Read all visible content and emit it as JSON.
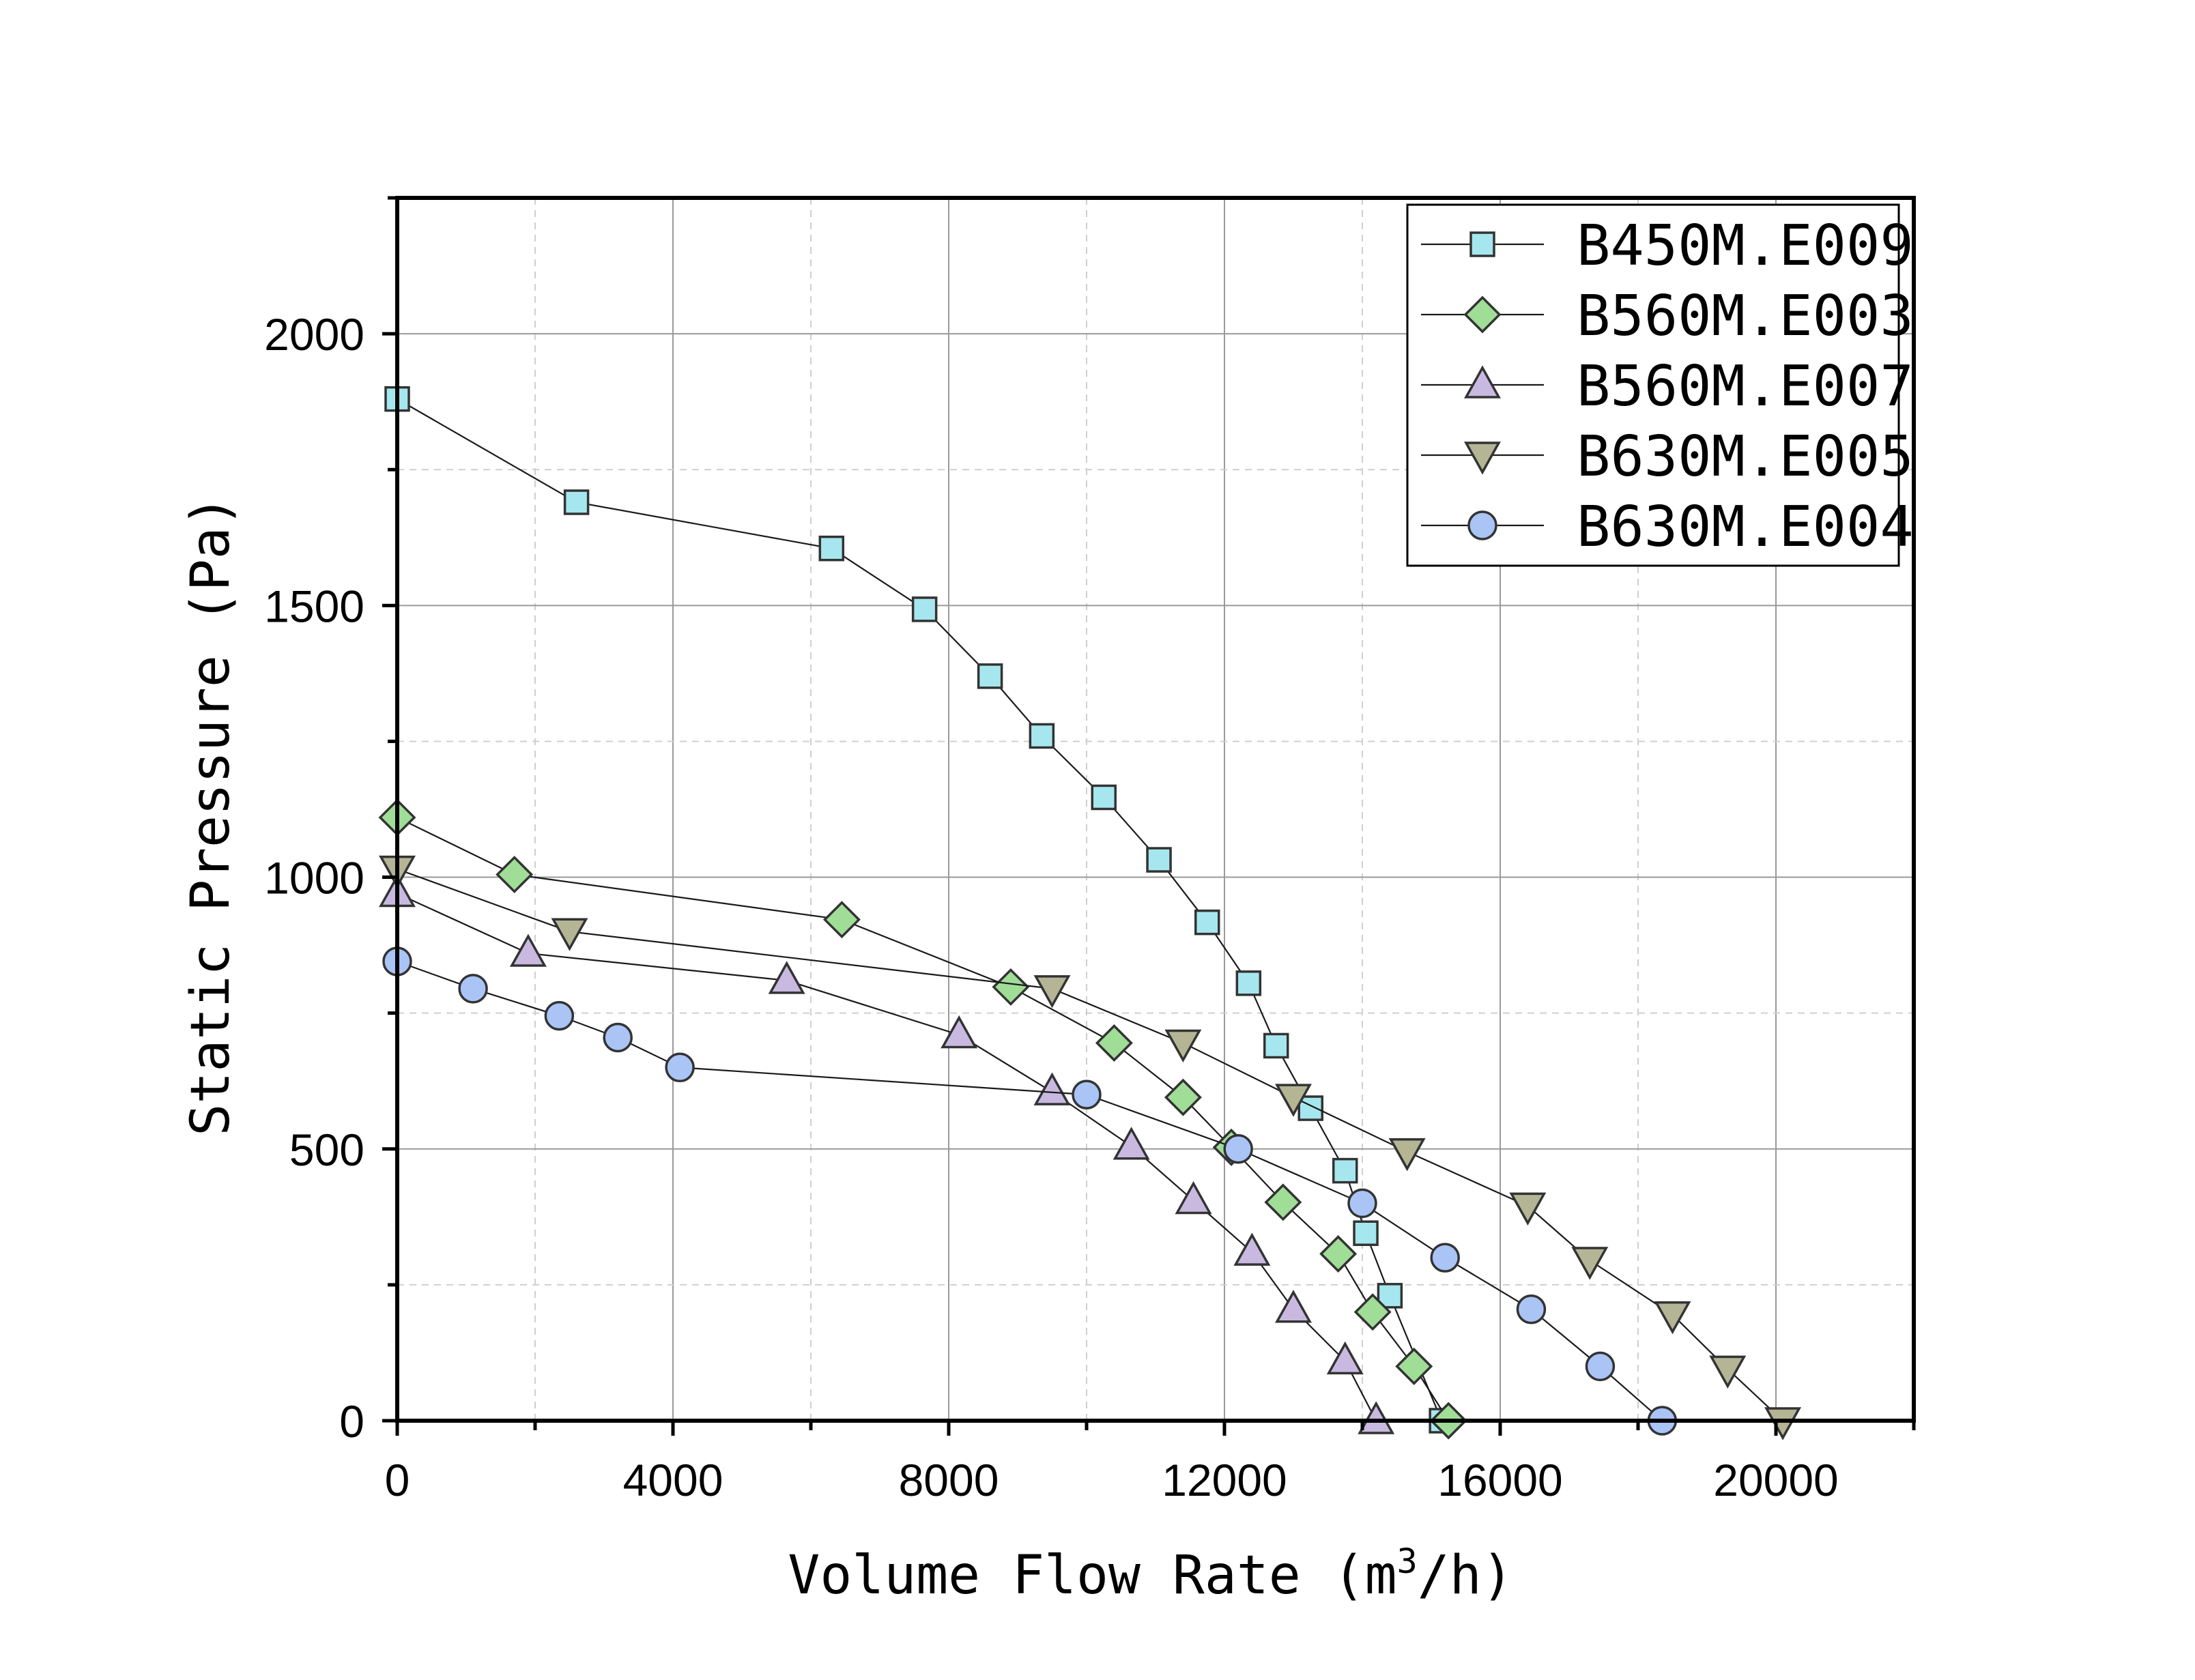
{
  "chart_data": {
    "type": "line",
    "title": "",
    "xlabel": "Volume Flow Rate (m3/h)",
    "xlabel_parts": {
      "main": "Volume Flow Rate (m",
      "sup": "3",
      "tail": "/h)"
    },
    "ylabel": "Static Pressure (Pa)",
    "xlim": [
      0,
      22000
    ],
    "ylim": [
      0,
      2250
    ],
    "x_ticks": [
      0,
      4000,
      8000,
      12000,
      16000,
      20000
    ],
    "y_ticks": [
      0,
      500,
      1000,
      1500,
      2000
    ],
    "grid": true,
    "legend_position": "top-right",
    "series": [
      {
        "name": "B450M.E009",
        "marker": "square",
        "color": "#a6e7ef",
        "x": [
          0,
          2600,
          6300,
          7650,
          8600,
          9350,
          10250,
          11050,
          11750,
          12350,
          12750,
          13250,
          13750,
          14050,
          14400,
          15150
        ],
        "y": [
          1880,
          1690,
          1605,
          1493,
          1370,
          1260,
          1147,
          1032,
          917,
          805,
          690,
          575,
          460,
          345,
          230,
          0
        ]
      },
      {
        "name": "B560M.E003",
        "marker": "diamond",
        "color": "#a0dd97",
        "x": [
          0,
          1700,
          6450,
          8900,
          10400,
          11400,
          12100,
          12850,
          13650,
          14150,
          14750,
          15250
        ],
        "y": [
          1110,
          1005,
          922,
          798,
          695,
          595,
          503,
          402,
          307,
          200,
          100,
          0
        ]
      },
      {
        "name": "B560M.E007",
        "marker": "triangle-up",
        "color": "#c9b9e0",
        "x": [
          0,
          1900,
          5650,
          8150,
          9500,
          10650,
          11550,
          12400,
          13000,
          13750,
          14200
        ],
        "y": [
          970,
          860,
          810,
          710,
          605,
          505,
          405,
          310,
          205,
          110,
          0
        ]
      },
      {
        "name": "B630M.E005",
        "marker": "triangle-down",
        "color": "#b3b595",
        "x": [
          0,
          2500,
          9500,
          11400,
          13000,
          14650,
          16400,
          17300,
          18500,
          19300,
          20100
        ],
        "y": [
          1015,
          900,
          795,
          695,
          595,
          495,
          395,
          295,
          195,
          95,
          0
        ]
      },
      {
        "name": "B630M.E004",
        "marker": "circle",
        "color": "#a9c4f5",
        "x": [
          0,
          1100,
          2350,
          3200,
          4100,
          10000,
          12200,
          14000,
          15200,
          16450,
          17450,
          18350
        ],
        "y": [
          845,
          795,
          745,
          705,
          650,
          600,
          500,
          400,
          300,
          205,
          100,
          0
        ]
      }
    ]
  }
}
